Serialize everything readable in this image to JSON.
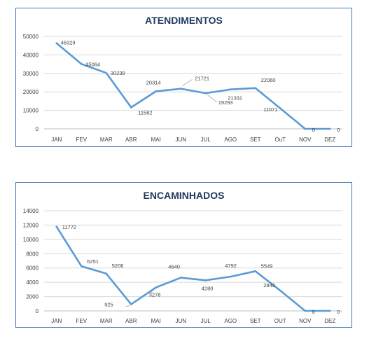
{
  "chart_data": [
    {
      "type": "line",
      "title": "ATENDIMENTOS",
      "categories": [
        "JAN",
        "FEV",
        "MAR",
        "ABR",
        "MAI",
        "JUN",
        "JUL",
        "AGO",
        "SET",
        "OuT",
        "NOV",
        "DEZ"
      ],
      "series": [
        {
          "values": [
            46329,
            35064,
            30239,
            11582,
            20314,
            21721,
            19293,
            21331,
            22060,
            11071,
            0,
            0
          ]
        }
      ],
      "data_labels": [
        "46329",
        "35064",
        "30239",
        "11582",
        "20314",
        "21721",
        "19293",
        "21331",
        "22060",
        "11071",
        "0",
        "0"
      ],
      "ylim": [
        0,
        50000
      ],
      "yticks": [
        0,
        10000,
        20000,
        30000,
        40000,
        50000
      ],
      "grid": true,
      "color": "#5b9bd5"
    },
    {
      "type": "line",
      "title": "ENCAMINHADOS",
      "categories": [
        "JAN",
        "FEV",
        "MAR",
        "ABR",
        "MAI",
        "JUN",
        "JUL",
        "AGO",
        "SET",
        "OUT",
        "NOV",
        "DEZ"
      ],
      "series": [
        {
          "values": [
            11772,
            6251,
            5206,
            925,
            3278,
            4640,
            4280,
            4792,
            5549,
            2843,
            0,
            0
          ]
        }
      ],
      "data_labels": [
        "11772",
        "6251",
        "5206",
        "925",
        "3278",
        "4640",
        "4280",
        "4792",
        "5549",
        "2843",
        "0",
        "0"
      ],
      "ylim": [
        0,
        14000
      ],
      "yticks": [
        0,
        2000,
        4000,
        6000,
        8000,
        10000,
        12000,
        14000
      ],
      "grid": true,
      "color": "#5b9bd5"
    }
  ]
}
